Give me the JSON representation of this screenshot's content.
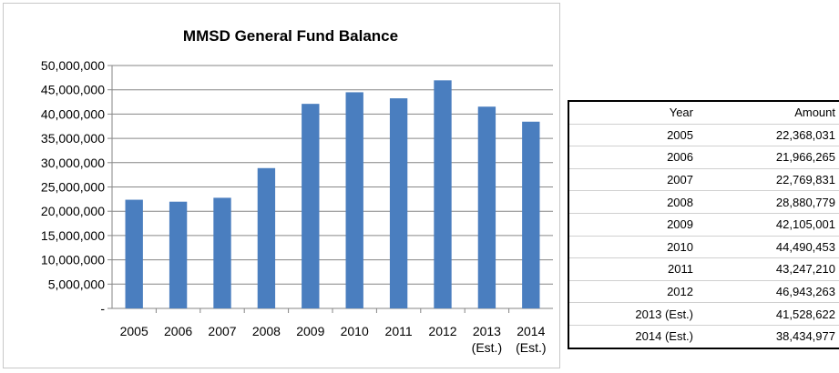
{
  "chart_data": {
    "type": "bar",
    "title": "MMSD General Fund Balance",
    "xlabel": "",
    "ylabel": "",
    "categories": [
      [
        "2005"
      ],
      [
        "2006"
      ],
      [
        "2007"
      ],
      [
        "2008"
      ],
      [
        "2009"
      ],
      [
        "2010"
      ],
      [
        "2011"
      ],
      [
        "2012"
      ],
      [
        "2013",
        "(Est.)"
      ],
      [
        "2014",
        "(Est.)"
      ]
    ],
    "values": [
      22368031,
      21966265,
      22769831,
      28880779,
      42105001,
      44490453,
      43247210,
      46943263,
      41528622,
      38434977
    ],
    "ylim": [
      0,
      50000000
    ],
    "yticks": [
      0,
      5000000,
      10000000,
      15000000,
      20000000,
      25000000,
      30000000,
      35000000,
      40000000,
      45000000,
      50000000
    ],
    "ytick_labels": [
      "-",
      "5,000,000",
      "10,000,000",
      "15,000,000",
      "20,000,000",
      "25,000,000",
      "30,000,000",
      "35,000,000",
      "40,000,000",
      "45,000,000",
      "50,000,000"
    ],
    "grid": true,
    "legend": "none",
    "bar_color": "#4a7ebf",
    "grid_color": "#868686"
  },
  "table": {
    "headers": [
      "Year",
      "Amount"
    ],
    "rows": [
      [
        "2005",
        "22,368,031"
      ],
      [
        "2006",
        "21,966,265"
      ],
      [
        "2007",
        "22,769,831"
      ],
      [
        "2008",
        "28,880,779"
      ],
      [
        "2009",
        "42,105,001"
      ],
      [
        "2010",
        "44,490,453"
      ],
      [
        "2011",
        "43,247,210"
      ],
      [
        "2012",
        "46,943,263"
      ],
      [
        "2013 (Est.)",
        "41,528,622"
      ],
      [
        "2014 (Est.)",
        "38,434,977"
      ]
    ]
  }
}
